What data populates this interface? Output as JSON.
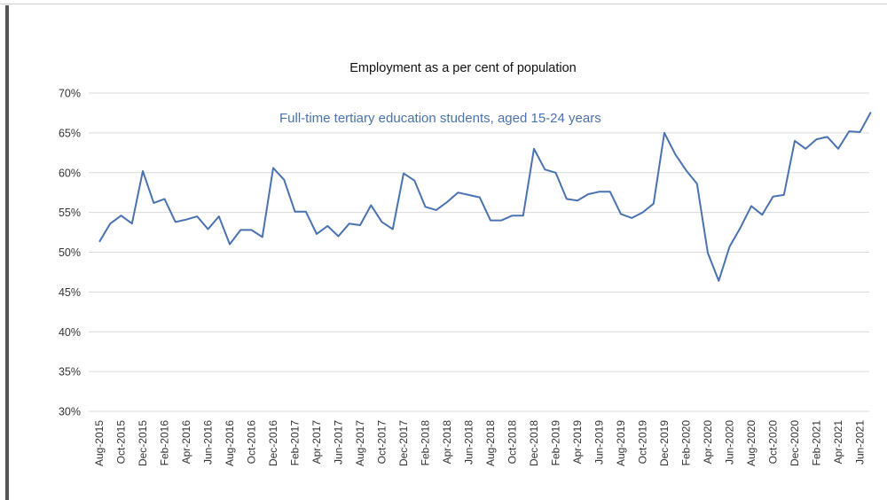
{
  "chart_data": {
    "type": "line",
    "title": "Employment as a per cent of population",
    "xlabel": "",
    "ylabel": "",
    "ylim": [
      30,
      70
    ],
    "yticks": [
      "30%",
      "35%",
      "40%",
      "45%",
      "50%",
      "55%",
      "60%",
      "65%",
      "70%"
    ],
    "grid": true,
    "legend": "none",
    "x": [
      "Aug-2015",
      "Sep-2015",
      "Oct-2015",
      "Nov-2015",
      "Dec-2015",
      "Jan-2016",
      "Feb-2016",
      "Mar-2016",
      "Apr-2016",
      "May-2016",
      "Jun-2016",
      "Jul-2016",
      "Aug-2016",
      "Sep-2016",
      "Oct-2016",
      "Nov-2016",
      "Dec-2016",
      "Jan-2017",
      "Feb-2017",
      "Mar-2017",
      "Apr-2017",
      "May-2017",
      "Jun-2017",
      "Jul-2017",
      "Aug-2017",
      "Sep-2017",
      "Oct-2017",
      "Nov-2017",
      "Dec-2017",
      "Jan-2018",
      "Feb-2018",
      "Mar-2018",
      "Apr-2018",
      "May-2018",
      "Jun-2018",
      "Jul-2018",
      "Aug-2018",
      "Sep-2018",
      "Oct-2018",
      "Nov-2018",
      "Dec-2018",
      "Jan-2019",
      "Feb-2019",
      "Mar-2019",
      "Apr-2019",
      "May-2019",
      "Jun-2019",
      "Jul-2019",
      "Aug-2019",
      "Sep-2019",
      "Oct-2019",
      "Nov-2019",
      "Dec-2019",
      "Jan-2020",
      "Feb-2020",
      "Mar-2020",
      "Apr-2020",
      "May-2020",
      "Jun-2020",
      "Jul-2020",
      "Aug-2020",
      "Sep-2020",
      "Oct-2020",
      "Nov-2020",
      "Dec-2020",
      "Jan-2021",
      "Feb-2021",
      "Mar-2021",
      "Apr-2021",
      "May-2021",
      "Jun-2021",
      "Jul-2021"
    ],
    "xtick_labels": [
      "Aug-2015",
      "Oct-2015",
      "Dec-2015",
      "Feb-2016",
      "Apr-2016",
      "Jun-2016",
      "Aug-2016",
      "Oct-2016",
      "Dec-2016",
      "Feb-2017",
      "Apr-2017",
      "Jun-2017",
      "Aug-2017",
      "Oct-2017",
      "Dec-2017",
      "Feb-2018",
      "Apr-2018",
      "Jun-2018",
      "Aug-2018",
      "Oct-2018",
      "Dec-2018",
      "Feb-2019",
      "Apr-2019",
      "Jun-2019",
      "Aug-2019",
      "Oct-2019",
      "Dec-2019",
      "Feb-2020",
      "Apr-2020",
      "Jun-2020",
      "Aug-2020",
      "Oct-2020",
      "Dec-2020",
      "Feb-2021",
      "Apr-2021",
      "Jun-2021"
    ],
    "series": [
      {
        "name": "Full-time tertiary education students, aged 15-24 years",
        "color": "#4a72b0",
        "values": [
          51.3,
          53.6,
          54.6,
          53.6,
          60.2,
          56.2,
          56.7,
          53.8,
          54.1,
          54.5,
          52.9,
          54.5,
          51.0,
          52.8,
          52.8,
          51.9,
          60.6,
          59.1,
          55.1,
          55.1,
          52.3,
          53.3,
          52.0,
          53.6,
          53.4,
          55.9,
          53.8,
          52.9,
          59.9,
          59.0,
          55.7,
          55.3,
          56.3,
          57.5,
          57.2,
          56.9,
          54.0,
          54.0,
          54.6,
          54.6,
          63.0,
          60.4,
          60.0,
          56.7,
          56.5,
          57.3,
          57.6,
          57.6,
          54.8,
          54.3,
          55.0,
          56.1,
          65.0,
          62.3,
          60.3,
          58.6,
          49.9,
          46.4,
          50.7,
          53.1,
          55.8,
          54.7,
          57.0,
          57.2,
          64.0,
          63.0,
          64.2,
          64.5,
          63.0,
          65.2,
          65.1,
          67.6
        ]
      }
    ]
  }
}
